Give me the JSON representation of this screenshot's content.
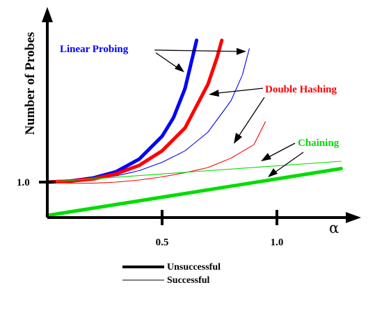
{
  "chart_data": {
    "type": "line",
    "title": "",
    "ylabel": "Number of Probes",
    "xlabel": "α",
    "xlim": [
      0,
      1.28
    ],
    "ylim": [
      0.68,
      2.36
    ],
    "x_ticks": [
      {
        "value": 0.5,
        "label": "0.5"
      },
      {
        "value": 1.0,
        "label": "1.0"
      }
    ],
    "y_ticks": [
      {
        "value": 1.0,
        "label": "1.0"
      }
    ],
    "series": [
      {
        "name": "Linear Probing",
        "outcome": "unsuccessful",
        "color": "#0000ff",
        "x": [
          0,
          0.1,
          0.2,
          0.3,
          0.4,
          0.5,
          0.55,
          0.6,
          0.65
        ],
        "y": [
          1.0,
          1.01,
          1.04,
          1.1,
          1.22,
          1.44,
          1.62,
          1.9,
          2.36
        ]
      },
      {
        "name": "Linear Probing",
        "outcome": "successful",
        "color": "#0000ff",
        "x": [
          0,
          0.1,
          0.2,
          0.3,
          0.4,
          0.5,
          0.6,
          0.7,
          0.8,
          0.85,
          0.88
        ],
        "y": [
          1.0,
          1.01,
          1.03,
          1.06,
          1.11,
          1.19,
          1.3,
          1.48,
          1.78,
          2.03,
          2.28
        ]
      },
      {
        "name": "Double Hashing",
        "outcome": "unsuccessful",
        "color": "#ff0000",
        "x": [
          0,
          0.1,
          0.2,
          0.3,
          0.4,
          0.5,
          0.6,
          0.7,
          0.74,
          0.76
        ],
        "y": [
          1.0,
          1.01,
          1.03,
          1.08,
          1.16,
          1.3,
          1.52,
          1.94,
          2.2,
          2.36
        ]
      },
      {
        "name": "Double Hashing",
        "outcome": "successful",
        "color": "#ff0000",
        "x": [
          0,
          0.1,
          0.2,
          0.3,
          0.4,
          0.5,
          0.6,
          0.7,
          0.8,
          0.9,
          0.95
        ],
        "y": [
          1.0,
          0.99,
          0.99,
          1.0,
          1.02,
          1.05,
          1.09,
          1.14,
          1.23,
          1.36,
          1.58
        ]
      },
      {
        "name": "Chaining",
        "outcome": "unsuccessful",
        "color": "#00dd00",
        "x": [
          0,
          1.28
        ],
        "y": [
          0.68,
          1.13
        ]
      },
      {
        "name": "Chaining",
        "outcome": "successful",
        "color": "#00dd00",
        "x": [
          0,
          1.28
        ],
        "y": [
          1.0,
          1.2
        ]
      }
    ],
    "annotations": [
      {
        "text": "Linear Probing",
        "color": "#0000ff"
      },
      {
        "text": "Double Hashing",
        "color": "#ff0000"
      },
      {
        "text": "Chaining",
        "color": "#00dd00"
      }
    ],
    "legend": [
      {
        "label": "Unsuccessful",
        "style": "thick"
      },
      {
        "label": "Successful",
        "style": "thin"
      }
    ],
    "grid": false
  }
}
